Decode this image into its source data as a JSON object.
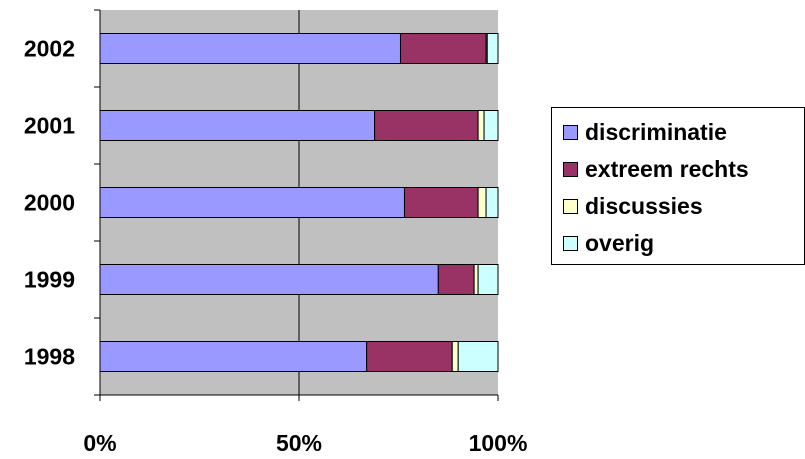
{
  "chart_data": {
    "type": "bar",
    "orientation": "horizontal",
    "stacked": "percent",
    "categories": [
      "1998",
      "1999",
      "2000",
      "2001",
      "2002"
    ],
    "series": [
      {
        "name": "discriminatie",
        "color": "#9999ff",
        "values": [
          67,
          85,
          76.5,
          69,
          75.5
        ]
      },
      {
        "name": "extreem rechts",
        "color": "#993366",
        "values": [
          21.5,
          9,
          18.5,
          26,
          21.5
        ]
      },
      {
        "name": "discussies",
        "color": "#ffffcc",
        "values": [
          1.5,
          1,
          2,
          1.5,
          0.3
        ]
      },
      {
        "name": "overig",
        "color": "#ccffff",
        "values": [
          10,
          5,
          3,
          3.5,
          2.7
        ]
      }
    ],
    "xlim": [
      0,
      100
    ],
    "x_ticks": [
      "0%",
      "50%",
      "100%"
    ],
    "grid": true,
    "plot_background": "#c0c0c0",
    "legend_position": "right"
  }
}
